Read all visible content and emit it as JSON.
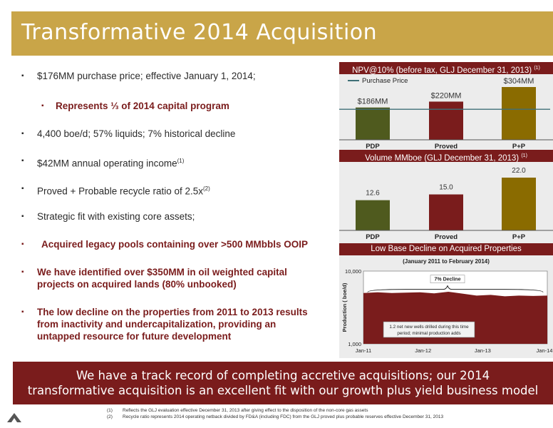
{
  "title": "Transformative 2014 Acquisition",
  "bullets": [
    {
      "text": "$176MM purchase price; effective January 1, 2014;",
      "sup": ""
    },
    {
      "text": "Represents ⅓ of 2014 capital program",
      "sup": ""
    },
    {
      "text": "4,400 boe/d; 57% liquids; 7% historical decline",
      "sup": ""
    },
    {
      "text": "$42MM annual operating income",
      "sup": "(1)"
    },
    {
      "text": "Proved + Probable recycle ratio of 2.5x",
      "sup": "(2)"
    },
    {
      "text": "Strategic fit with existing core assets;",
      "sup": ""
    },
    {
      "text": "Acquired legacy pools containing over >500 MMbbls OOIP",
      "sup": ""
    },
    {
      "text": "We have identified over $350MM in oil weighted capital projects on acquired lands (80% unbooked)",
      "sup": ""
    },
    {
      "text": "The low decline on the properties from 2011 to 2013 results from inactivity and undercapitalization, providing an untapped resource for future development",
      "sup": ""
    }
  ],
  "colors": {
    "gold": "#c9a548",
    "maroon": "#7a1c1c",
    "olive": "#4f5a1e",
    "bronze": "#8a6b00",
    "teal_line": "#3f6f77"
  },
  "chart_data": [
    {
      "type": "bar",
      "title": "NPV@10% (before tax, GLJ December 31, 2013)",
      "title_sup": "(1)",
      "categories": [
        "PDP",
        "Proved",
        "P+P"
      ],
      "values": [
        186,
        220,
        304
      ],
      "value_labels": [
        "$186MM",
        "$220MM",
        "$304MM"
      ],
      "reference_line": {
        "name": "Purchase Price",
        "value": 176
      },
      "ylim": [
        0,
        304
      ]
    },
    {
      "type": "bar",
      "title": "Volume MMboe (GLJ December 31, 2013)",
      "title_sup": "(1)",
      "categories": [
        "PDP",
        "Proved",
        "P+P"
      ],
      "values": [
        12.6,
        15.0,
        22.0
      ],
      "value_labels": [
        "12.6",
        "15.0",
        "22.0"
      ],
      "ylim": [
        0,
        22
      ]
    },
    {
      "type": "area",
      "title": "Low Base Decline on Acquired Properties",
      "subtitle": "(January 2011 to February 2014)",
      "ylabel": "Production ( boe/d)",
      "yscale": "log",
      "ylim": [
        1000,
        10000
      ],
      "ytick_labels": [
        "10,000",
        "1,000"
      ],
      "xtick_labels": [
        "Jan-11",
        "Jan-12",
        "Jan-13",
        "Jan-14"
      ],
      "x": [
        "Jan-11",
        "Apr-11",
        "Jul-11",
        "Oct-11",
        "Jan-12",
        "Apr-12",
        "Jul-12",
        "Oct-12",
        "Jan-13",
        "Apr-13",
        "Jul-13",
        "Oct-13",
        "Jan-14",
        "Feb-14"
      ],
      "y": [
        5000,
        5100,
        5000,
        5050,
        5100,
        4950,
        5200,
        4900,
        4600,
        4700,
        4500,
        4600,
        4550,
        4600
      ],
      "annotation": "7% Decline",
      "note": "1.2 net new wells drilled during this time period; minimal production adds"
    }
  ],
  "bottom_banner": {
    "line1": "We have a track record of completing accretive acquisitions; our 2014",
    "line2": "transformative acquisition is an excellent fit with our growth plus yield business model"
  },
  "footnotes": [
    {
      "num": "(1)",
      "text": "Reflects the GLJ evaluation effective December 31, 2013 after giving effect to the disposition of the non-core gas assets"
    },
    {
      "num": "(2)",
      "text": "Recycle ratio represents 2014 operating netback divided by FD&A (including FDC) from the GLJ proved plus probable reserves effective December 31, 2013"
    }
  ],
  "logo_icon": "company-mountain-logo"
}
